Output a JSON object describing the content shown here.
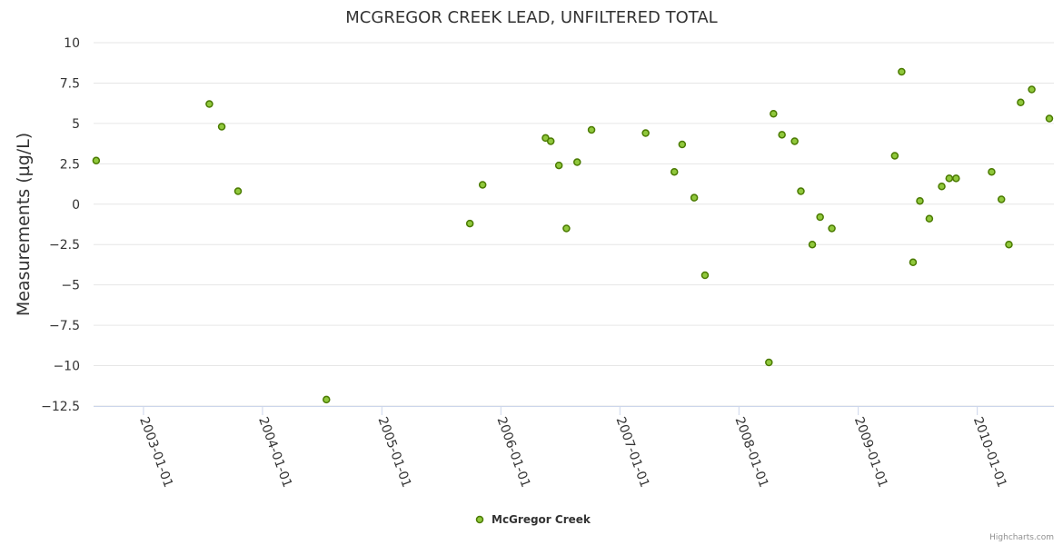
{
  "credits": "Highcharts.com",
  "colors": {
    "marker_fill": "#90c83c",
    "marker_stroke": "#4a7a00",
    "grid": "#e6e6e6",
    "axis": "#ccd6eb"
  },
  "chart_data": {
    "type": "scatter",
    "title": "MCGREGOR CREEK LEAD, UNFILTERED TOTAL",
    "xlabel": "",
    "ylabel": "Measurements (µg/L)",
    "xlim": [
      "2002-08-01",
      "2010-08-24"
    ],
    "ylim": [
      -12.5,
      10
    ],
    "yticks": [
      10,
      7.5,
      5,
      2.5,
      0,
      -2.5,
      -5,
      -7.5,
      -10,
      -12.5
    ],
    "ytick_labels": [
      "10",
      "7.5",
      "5",
      "2.5",
      "0",
      "−2.5",
      "−5",
      "−7.5",
      "−10",
      "−12.5"
    ],
    "xticks": [
      "2003-01-01",
      "2004-01-01",
      "2005-01-01",
      "2006-01-01",
      "2007-01-01",
      "2008-01-01",
      "2009-01-01",
      "2010-01-01"
    ],
    "grid": true,
    "legend": "bottom-center",
    "series": [
      {
        "name": "McGregor Creek",
        "points": [
          [
            "2002-08-09",
            2.7
          ],
          [
            "2003-07-22",
            6.2
          ],
          [
            "2003-08-29",
            4.8
          ],
          [
            "2003-10-18",
            0.8
          ],
          [
            "2004-07-15",
            -12.1
          ],
          [
            "2005-09-28",
            -1.2
          ],
          [
            "2005-11-06",
            1.2
          ],
          [
            "2006-05-18",
            4.1
          ],
          [
            "2006-06-03",
            3.9
          ],
          [
            "2006-06-28",
            2.4
          ],
          [
            "2006-07-21",
            -1.5
          ],
          [
            "2006-08-23",
            2.6
          ],
          [
            "2006-10-06",
            4.6
          ],
          [
            "2007-03-21",
            4.4
          ],
          [
            "2007-06-17",
            2.0
          ],
          [
            "2007-07-11",
            3.7
          ],
          [
            "2007-08-17",
            0.4
          ],
          [
            "2007-09-19",
            -4.4
          ],
          [
            "2008-04-02",
            -9.8
          ],
          [
            "2008-04-16",
            5.6
          ],
          [
            "2008-05-12",
            4.3
          ],
          [
            "2008-06-20",
            3.9
          ],
          [
            "2008-07-09",
            0.8
          ],
          [
            "2008-08-13",
            -2.5
          ],
          [
            "2008-09-06",
            -0.8
          ],
          [
            "2008-10-12",
            -1.5
          ],
          [
            "2009-04-23",
            3.0
          ],
          [
            "2009-05-14",
            8.2
          ],
          [
            "2009-06-18",
            -3.6
          ],
          [
            "2009-07-09",
            0.2
          ],
          [
            "2009-08-07",
            -0.9
          ],
          [
            "2009-09-14",
            1.1
          ],
          [
            "2009-10-07",
            1.6
          ],
          [
            "2009-10-28",
            1.6
          ],
          [
            "2010-02-14",
            2.0
          ],
          [
            "2010-03-16",
            0.3
          ],
          [
            "2010-04-08",
            -2.5
          ],
          [
            "2010-05-14",
            6.3
          ],
          [
            "2010-06-17",
            7.1
          ],
          [
            "2010-08-10",
            5.3
          ]
        ]
      }
    ]
  }
}
